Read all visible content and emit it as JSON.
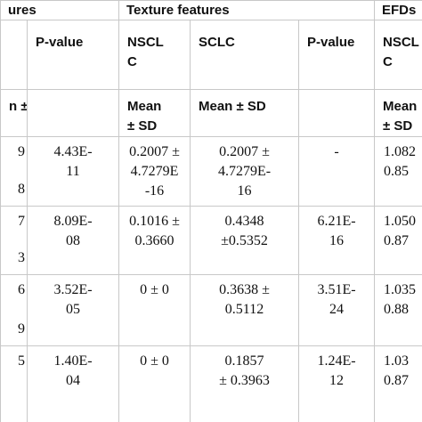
{
  "table": {
    "group_headers": [
      "ures",
      "Texture features",
      "EFDs"
    ],
    "column_headers": [
      [
        "P-value"
      ],
      [
        "NSCL",
        "C"
      ],
      [
        "SCLC"
      ],
      [
        "P-value"
      ],
      [
        "NSCL",
        "C"
      ]
    ],
    "subheaders": [
      [
        "n ±"
      ],
      null,
      [
        "Mean",
        "± SD"
      ],
      [
        "Mean ± SD"
      ],
      null,
      [
        "Mean",
        "± SD"
      ]
    ],
    "rows": [
      {
        "cut": [
          "9",
          "8"
        ],
        "cells": [
          [
            "4.43E-",
            "11"
          ],
          [
            "0.2007 ±",
            "4.7279E",
            "-16"
          ],
          [
            "0.2007 ±",
            "4.7279E-",
            "16"
          ],
          [
            "-"
          ],
          [
            "1.082",
            "0.85"
          ]
        ]
      },
      {
        "cut": [
          "7",
          "3"
        ],
        "cells": [
          [
            "8.09E-",
            "08"
          ],
          [
            "0.1016 ±",
            "0.3660"
          ],
          [
            "0.4348",
            "±0.5352"
          ],
          [
            "6.21E-",
            "16"
          ],
          [
            "1.050",
            "0.87"
          ]
        ]
      },
      {
        "cut": [
          "6",
          "9"
        ],
        "cells": [
          [
            "3.52E-",
            "05"
          ],
          [
            "0 ± 0"
          ],
          [
            "0.3638 ±",
            "0.5112"
          ],
          [
            "3.51E-",
            "24"
          ],
          [
            "1.035",
            "0.88"
          ]
        ]
      },
      {
        "cut": [
          "5"
        ],
        "cells": [
          [
            "1.40E-",
            "04"
          ],
          [
            "0  ± 0"
          ],
          [
            "0.1857",
            "± 0.3963"
          ],
          [
            "1.24E-",
            "12"
          ],
          [
            "1.03",
            "0.87"
          ]
        ]
      }
    ]
  }
}
